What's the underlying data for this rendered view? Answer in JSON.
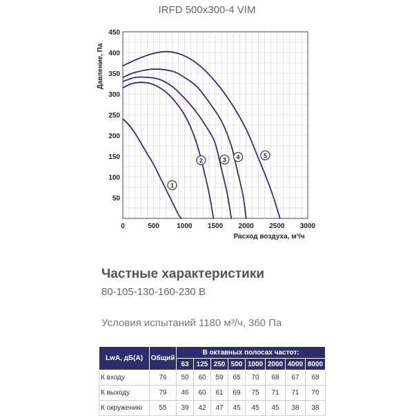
{
  "chart_data": {
    "type": "line",
    "title": "IRFD 500x300-4 VIM",
    "xlabel": "Расход воздуха, м³/ч",
    "ylabel": "Давление, Па",
    "xlim": [
      0,
      3000
    ],
    "ylim": [
      0,
      450
    ],
    "xticks": [
      "0",
      "500",
      "1000",
      "1500",
      "2000",
      "2500",
      "3000"
    ],
    "yticks": [
      "50",
      "100",
      "150",
      "200",
      "250",
      "300",
      "350",
      "400",
      "450"
    ],
    "grid": true,
    "series": [
      {
        "name": "1",
        "points": [
          [
            0,
            240
          ],
          [
            100,
            225
          ],
          [
            200,
            205
          ],
          [
            300,
            180
          ],
          [
            400,
            155
          ],
          [
            500,
            130
          ],
          [
            600,
            100
          ],
          [
            700,
            70
          ],
          [
            800,
            40
          ],
          [
            900,
            10
          ],
          [
            950,
            0
          ]
        ]
      },
      {
        "name": "2",
        "points": [
          [
            0,
            315
          ],
          [
            150,
            325
          ],
          [
            300,
            328
          ],
          [
            450,
            325
          ],
          [
            600,
            315
          ],
          [
            750,
            298
          ],
          [
            900,
            272
          ],
          [
            1000,
            250
          ],
          [
            1100,
            220
          ],
          [
            1200,
            180
          ],
          [
            1300,
            125
          ],
          [
            1400,
            60
          ],
          [
            1470,
            0
          ]
        ]
      },
      {
        "name": "3",
        "points": [
          [
            0,
            330
          ],
          [
            200,
            340
          ],
          [
            400,
            340
          ],
          [
            600,
            335
          ],
          [
            800,
            318
          ],
          [
            1000,
            290
          ],
          [
            1200,
            255
          ],
          [
            1400,
            210
          ],
          [
            1500,
            180
          ],
          [
            1600,
            120
          ],
          [
            1700,
            55
          ],
          [
            1760,
            0
          ]
        ]
      },
      {
        "name": "4",
        "points": [
          [
            0,
            340
          ],
          [
            200,
            352
          ],
          [
            500,
            360
          ],
          [
            800,
            355
          ],
          [
            1000,
            340
          ],
          [
            1200,
            318
          ],
          [
            1400,
            280
          ],
          [
            1600,
            235
          ],
          [
            1750,
            180
          ],
          [
            1850,
            120
          ],
          [
            1950,
            55
          ],
          [
            2000,
            0
          ]
        ]
      },
      {
        "name": "5",
        "points": [
          [
            0,
            368
          ],
          [
            250,
            385
          ],
          [
            500,
            398
          ],
          [
            750,
            402
          ],
          [
            1000,
            392
          ],
          [
            1250,
            368
          ],
          [
            1500,
            330
          ],
          [
            1750,
            280
          ],
          [
            2000,
            215
          ],
          [
            2200,
            145
          ],
          [
            2400,
            70
          ],
          [
            2550,
            0
          ]
        ]
      }
    ],
    "annotations": [
      {
        "label": "1",
        "x": 800,
        "y": 80
      },
      {
        "label": "2",
        "x": 1270,
        "y": 140
      },
      {
        "label": "3",
        "x": 1650,
        "y": 142
      },
      {
        "label": "4",
        "x": 1870,
        "y": 148
      },
      {
        "label": "5",
        "x": 2310,
        "y": 152
      }
    ]
  },
  "heading": "Частные характеристики",
  "subheading": "80-105-130-160-230 В",
  "conditions": "Условия испытаний 1180 м³/ч, 360 Па",
  "table": {
    "lwa_header": "LwA, дБ(А)",
    "total_header": "Общий",
    "bands_header": "В октавных полосах частот:",
    "bands": [
      "63",
      "125",
      "250",
      "500",
      "1000",
      "2000",
      "4000",
      "8000"
    ],
    "rows": [
      {
        "label": "К входу",
        "total": "76",
        "values": [
          "50",
          "60",
          "59",
          "65",
          "70",
          "68",
          "67",
          "68"
        ]
      },
      {
        "label": "К выходу",
        "total": "79",
        "values": [
          "46",
          "60",
          "61",
          "69",
          "75",
          "71",
          "71",
          "70"
        ]
      },
      {
        "label": "К окружению",
        "total": "55",
        "values": [
          "39",
          "42",
          "47",
          "45",
          "45",
          "45",
          "38",
          "38"
        ]
      }
    ]
  }
}
